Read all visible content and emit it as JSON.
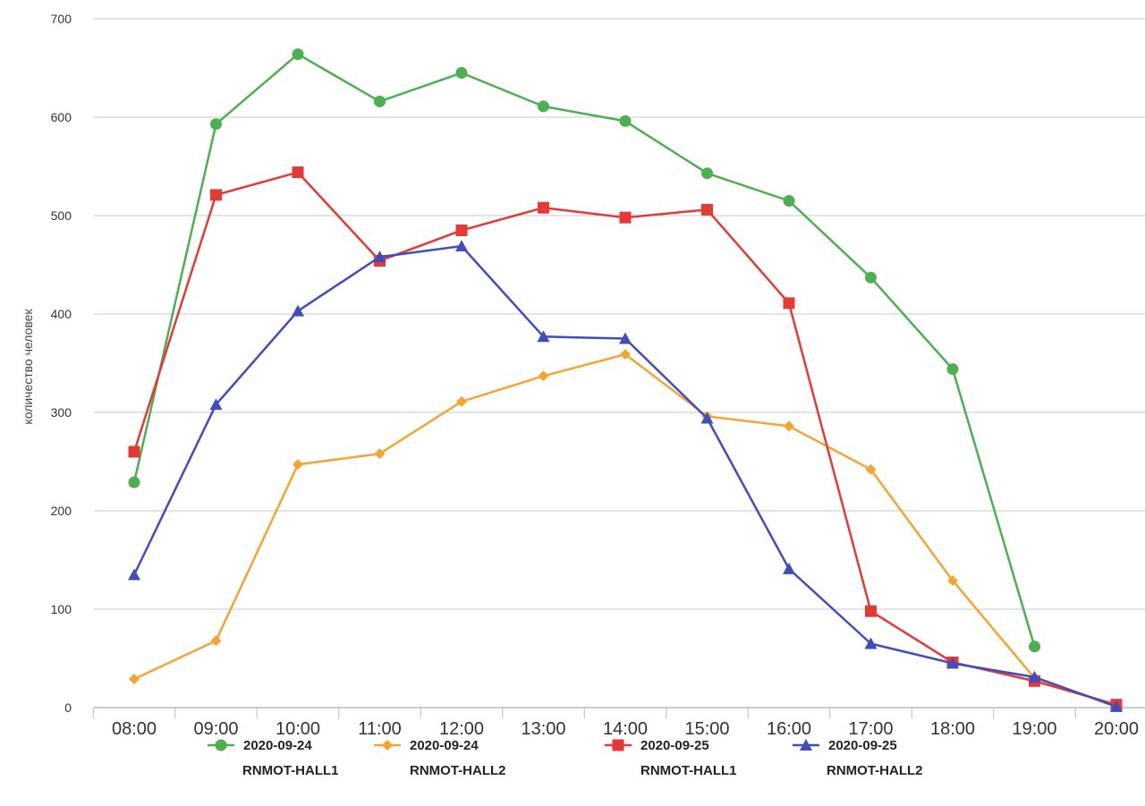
{
  "chart_data": {
    "type": "line",
    "title": "",
    "xlabel": "",
    "ylabel": "количество человек",
    "ylim": [
      0,
      700
    ],
    "yticks": [
      0,
      100,
      200,
      300,
      400,
      500,
      600,
      700
    ],
    "grid": true,
    "legend_position": "bottom",
    "categories": [
      "08:00",
      "09:00",
      "10:00",
      "11:00",
      "12:00",
      "13:00",
      "14:00",
      "15:00",
      "16:00",
      "17:00",
      "18:00",
      "19:00",
      "20:00"
    ],
    "series": [
      {
        "name_line1": "2020-09-24",
        "name_line2": "RNMOT-HALL1",
        "color": "#4caf50",
        "marker": "circle",
        "values": [
          229,
          593,
          664,
          616,
          645,
          611,
          596,
          543,
          515,
          437,
          344,
          62,
          null
        ]
      },
      {
        "name_line1": "2020-09-24",
        "name_line2": "RNMOT-HALL2",
        "color": "#f5a431",
        "marker": "diamond",
        "values": [
          29,
          68,
          247,
          258,
          311,
          337,
          359,
          296,
          286,
          242,
          129,
          30,
          2
        ]
      },
      {
        "name_line1": "2020-09-25",
        "name_line2": "RNMOT-HALL1",
        "color": "#e53935",
        "marker": "square",
        "values": [
          260,
          521,
          544,
          454,
          485,
          508,
          498,
          506,
          411,
          98,
          46,
          27,
          3
        ]
      },
      {
        "name_line1": "2020-09-25",
        "name_line2": "RNMOT-HALL2",
        "color": "#3f4dbf",
        "marker": "triangle",
        "values": [
          135,
          308,
          403,
          458,
          469,
          377,
          375,
          294,
          141,
          65,
          45,
          31,
          1
        ]
      }
    ]
  }
}
